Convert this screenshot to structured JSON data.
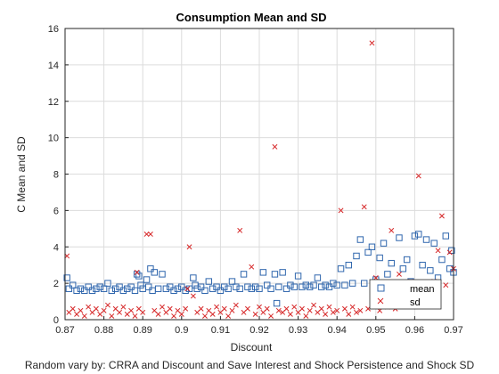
{
  "chart_data": {
    "type": "scatter",
    "title": "Consumption Mean and SD",
    "xlabel": "Discount",
    "ylabel": "C Mean and SD",
    "caption": "Random vary by: CRRA and Discount and Save Interest and Shock Persistence and Shock SD",
    "xlim": [
      0.87,
      0.97
    ],
    "ylim": [
      0,
      16
    ],
    "xticks": [
      "0.87",
      "0.88",
      "0.89",
      "0.9",
      "0.91",
      "0.92",
      "0.93",
      "0.94",
      "0.95",
      "0.96",
      "0.97"
    ],
    "yticks": [
      "0",
      "2",
      "4",
      "6",
      "8",
      "10",
      "12",
      "14",
      "16"
    ],
    "grid": true,
    "legend_position": "bottom-right",
    "colors": {
      "mean": "#2f66ad",
      "sd": "#d62728"
    },
    "series": [
      {
        "name": "mean",
        "marker": "square",
        "points": [
          [
            0.8705,
            2.3
          ],
          [
            0.871,
            1.7
          ],
          [
            0.872,
            1.9
          ],
          [
            0.873,
            1.6
          ],
          [
            0.874,
            1.7
          ],
          [
            0.875,
            1.6
          ],
          [
            0.876,
            1.8
          ],
          [
            0.877,
            1.6
          ],
          [
            0.878,
            1.7
          ],
          [
            0.879,
            1.8
          ],
          [
            0.88,
            1.7
          ],
          [
            0.881,
            2.0
          ],
          [
            0.882,
            1.6
          ],
          [
            0.883,
            1.7
          ],
          [
            0.884,
            1.8
          ],
          [
            0.885,
            1.6
          ],
          [
            0.886,
            1.7
          ],
          [
            0.887,
            1.8
          ],
          [
            0.888,
            1.6
          ],
          [
            0.8885,
            2.5
          ],
          [
            0.889,
            2.4
          ],
          [
            0.8895,
            1.9
          ],
          [
            0.89,
            1.7
          ],
          [
            0.891,
            2.2
          ],
          [
            0.8915,
            1.8
          ],
          [
            0.892,
            2.8
          ],
          [
            0.8925,
            1.6
          ],
          [
            0.893,
            2.6
          ],
          [
            0.894,
            1.7
          ],
          [
            0.895,
            2.5
          ],
          [
            0.896,
            1.7
          ],
          [
            0.897,
            1.8
          ],
          [
            0.898,
            1.6
          ],
          [
            0.899,
            1.7
          ],
          [
            0.9,
            1.8
          ],
          [
            0.901,
            1.6
          ],
          [
            0.902,
            1.7
          ],
          [
            0.903,
            2.3
          ],
          [
            0.9035,
            1.9
          ],
          [
            0.904,
            1.7
          ],
          [
            0.905,
            1.8
          ],
          [
            0.906,
            1.6
          ],
          [
            0.907,
            2.1
          ],
          [
            0.908,
            1.7
          ],
          [
            0.909,
            1.8
          ],
          [
            0.91,
            1.6
          ],
          [
            0.911,
            1.8
          ],
          [
            0.912,
            1.7
          ],
          [
            0.913,
            2.1
          ],
          [
            0.914,
            1.8
          ],
          [
            0.915,
            1.7
          ],
          [
            0.916,
            2.5
          ],
          [
            0.917,
            1.8
          ],
          [
            0.918,
            1.7
          ],
          [
            0.919,
            1.8
          ],
          [
            0.92,
            1.7
          ],
          [
            0.921,
            2.6
          ],
          [
            0.922,
            1.9
          ],
          [
            0.923,
            1.7
          ],
          [
            0.924,
            2.5
          ],
          [
            0.9245,
            0.9
          ],
          [
            0.925,
            1.8
          ],
          [
            0.926,
            2.6
          ],
          [
            0.927,
            1.7
          ],
          [
            0.928,
            1.9
          ],
          [
            0.929,
            1.8
          ],
          [
            0.93,
            2.4
          ],
          [
            0.931,
            1.8
          ],
          [
            0.932,
            1.9
          ],
          [
            0.933,
            1.8
          ],
          [
            0.934,
            1.9
          ],
          [
            0.935,
            2.3
          ],
          [
            0.936,
            1.8
          ],
          [
            0.937,
            1.9
          ],
          [
            0.938,
            1.8
          ],
          [
            0.939,
            2.0
          ],
          [
            0.94,
            1.9
          ],
          [
            0.941,
            2.8
          ],
          [
            0.942,
            1.9
          ],
          [
            0.943,
            3.0
          ],
          [
            0.944,
            2.0
          ],
          [
            0.945,
            3.5
          ],
          [
            0.946,
            4.4
          ],
          [
            0.947,
            2.0
          ],
          [
            0.948,
            3.7
          ],
          [
            0.949,
            4.0
          ],
          [
            0.95,
            2.2
          ],
          [
            0.951,
            3.4
          ],
          [
            0.952,
            4.2
          ],
          [
            0.953,
            2.5
          ],
          [
            0.954,
            3.1
          ],
          [
            0.955,
            2.0
          ],
          [
            0.956,
            4.5
          ],
          [
            0.957,
            2.8
          ],
          [
            0.958,
            3.3
          ],
          [
            0.959,
            2.1
          ],
          [
            0.96,
            4.6
          ],
          [
            0.961,
            4.7
          ],
          [
            0.962,
            3.0
          ],
          [
            0.963,
            4.4
          ],
          [
            0.964,
            2.7
          ],
          [
            0.965,
            4.2
          ],
          [
            0.966,
            2.3
          ],
          [
            0.967,
            3.3
          ],
          [
            0.968,
            4.6
          ],
          [
            0.969,
            2.8
          ],
          [
            0.9695,
            3.8
          ],
          [
            0.97,
            2.6
          ]
        ]
      },
      {
        "name": "sd",
        "marker": "x",
        "points": [
          [
            0.8705,
            3.5
          ],
          [
            0.871,
            0.4
          ],
          [
            0.872,
            0.6
          ],
          [
            0.873,
            0.3
          ],
          [
            0.874,
            0.5
          ],
          [
            0.875,
            0.2
          ],
          [
            0.876,
            0.7
          ],
          [
            0.877,
            0.4
          ],
          [
            0.878,
            0.6
          ],
          [
            0.879,
            0.3
          ],
          [
            0.88,
            0.5
          ],
          [
            0.881,
            0.8
          ],
          [
            0.882,
            0.2
          ],
          [
            0.883,
            0.6
          ],
          [
            0.884,
            0.4
          ],
          [
            0.885,
            0.7
          ],
          [
            0.886,
            0.3
          ],
          [
            0.887,
            0.5
          ],
          [
            0.888,
            0.2
          ],
          [
            0.8885,
            2.6
          ],
          [
            0.889,
            0.6
          ],
          [
            0.89,
            0.4
          ],
          [
            0.891,
            4.7
          ],
          [
            0.892,
            4.7
          ],
          [
            0.893,
            0.5
          ],
          [
            0.894,
            0.3
          ],
          [
            0.895,
            0.7
          ],
          [
            0.896,
            0.4
          ],
          [
            0.897,
            0.6
          ],
          [
            0.898,
            0.2
          ],
          [
            0.899,
            0.5
          ],
          [
            0.9,
            0.3
          ],
          [
            0.901,
            0.6
          ],
          [
            0.9015,
            1.7
          ],
          [
            0.902,
            4.0
          ],
          [
            0.903,
            1.3
          ],
          [
            0.904,
            0.4
          ],
          [
            0.905,
            0.6
          ],
          [
            0.906,
            0.2
          ],
          [
            0.907,
            0.5
          ],
          [
            0.908,
            0.3
          ],
          [
            0.909,
            0.7
          ],
          [
            0.91,
            0.4
          ],
          [
            0.911,
            0.6
          ],
          [
            0.912,
            0.2
          ],
          [
            0.913,
            0.5
          ],
          [
            0.914,
            0.8
          ],
          [
            0.915,
            4.9
          ],
          [
            0.916,
            0.4
          ],
          [
            0.917,
            0.6
          ],
          [
            0.918,
            2.9
          ],
          [
            0.919,
            0.3
          ],
          [
            0.92,
            0.7
          ],
          [
            0.921,
            0.4
          ],
          [
            0.922,
            0.6
          ],
          [
            0.923,
            0.2
          ],
          [
            0.924,
            9.5
          ],
          [
            0.925,
            0.5
          ],
          [
            0.926,
            0.4
          ],
          [
            0.927,
            0.6
          ],
          [
            0.928,
            0.3
          ],
          [
            0.929,
            0.7
          ],
          [
            0.93,
            0.4
          ],
          [
            0.931,
            0.6
          ],
          [
            0.932,
            0.2
          ],
          [
            0.933,
            0.5
          ],
          [
            0.934,
            0.8
          ],
          [
            0.935,
            0.4
          ],
          [
            0.936,
            0.6
          ],
          [
            0.937,
            0.3
          ],
          [
            0.938,
            0.7
          ],
          [
            0.939,
            0.4
          ],
          [
            0.94,
            0.5
          ],
          [
            0.941,
            6.0
          ],
          [
            0.942,
            0.6
          ],
          [
            0.943,
            0.3
          ],
          [
            0.944,
            0.7
          ],
          [
            0.945,
            0.4
          ],
          [
            0.946,
            0.5
          ],
          [
            0.947,
            6.2
          ],
          [
            0.948,
            0.6
          ],
          [
            0.949,
            15.2
          ],
          [
            0.95,
            2.3
          ],
          [
            0.951,
            0.5
          ],
          [
            0.952,
            1.8
          ],
          [
            0.953,
            0.7
          ],
          [
            0.954,
            4.9
          ],
          [
            0.955,
            0.6
          ],
          [
            0.956,
            2.5
          ],
          [
            0.957,
            0.9
          ],
          [
            0.958,
            1.8
          ],
          [
            0.959,
            2.1
          ],
          [
            0.96,
            0.8
          ],
          [
            0.961,
            7.9
          ],
          [
            0.962,
            1.8
          ],
          [
            0.963,
            1.2
          ],
          [
            0.964,
            1.9
          ],
          [
            0.965,
            2.1
          ],
          [
            0.966,
            3.8
          ],
          [
            0.967,
            5.7
          ],
          [
            0.968,
            1.9
          ],
          [
            0.969,
            3.7
          ],
          [
            0.97,
            2.8
          ]
        ]
      }
    ]
  }
}
